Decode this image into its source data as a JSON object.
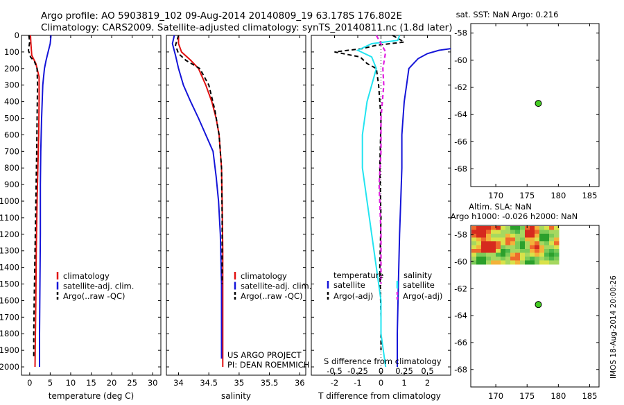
{
  "header": {
    "line1": "Argo profile: AO 5903819_102 09-Aug-2014 20140809_19 63.178S 176.802E",
    "line2": "Climatology: CARS2009. Satellite-adjusted climatology: synTS_20140811.nc (1.8d later)"
  },
  "side_stamp": "IMOS 18-Aug-2014 20:00:26",
  "colors": {
    "climatology": "#e01010",
    "satellite": "#1414d8",
    "argo": "#000000",
    "sal_sat": "#22e4f0",
    "sal_argo": "#e020e0",
    "float_marker": "#44cc22"
  },
  "chart_data": [
    {
      "type": "line",
      "panel": "temperature",
      "xlabel": "temperature (deg C)",
      "xlim": [
        -2,
        32
      ],
      "xticks": [
        0,
        5,
        10,
        15,
        20,
        25,
        30
      ],
      "ylim": [
        0,
        2050
      ],
      "yreversed": true,
      "yticks": [
        0,
        100,
        200,
        300,
        400,
        500,
        600,
        700,
        800,
        900,
        1000,
        1100,
        1200,
        1300,
        1400,
        1500,
        1600,
        1700,
        1800,
        1900,
        2000
      ],
      "legend": [
        "climatology",
        "satellite-adj. clim.",
        "Argo(..raw -QC)"
      ],
      "series": [
        {
          "name": "climatology",
          "x": [
            0.2,
            0.3,
            0.5,
            1.5,
            2.3,
            2.3,
            2.2,
            2.0,
            1.8,
            1.6,
            1.5,
            1.4,
            1.3
          ],
          "y": [
            0,
            50,
            120,
            170,
            250,
            400,
            600,
            800,
            1000,
            1300,
            1600,
            1800,
            2000
          ]
        },
        {
          "name": "satellite-adj. clim.",
          "x": [
            5.2,
            5.0,
            4.5,
            4.0,
            3.6,
            3.2,
            2.9,
            2.7,
            2.6,
            2.6,
            2.5,
            2.4,
            2.4
          ],
          "y": [
            0,
            50,
            100,
            150,
            200,
            300,
            500,
            700,
            900,
            1200,
            1500,
            1800,
            2000
          ]
        },
        {
          "name": "Argo(..raw -QC)",
          "x": [
            -0.2,
            0.0,
            -0.3,
            0.2,
            1.2,
            1.8,
            1.9,
            1.8,
            1.7,
            1.5,
            1.3,
            1.1,
            1.0,
            1.0
          ],
          "y": [
            0,
            40,
            90,
            130,
            160,
            200,
            300,
            500,
            700,
            1000,
            1300,
            1600,
            1800,
            1950
          ]
        }
      ]
    },
    {
      "type": "line",
      "panel": "salinity",
      "xlabel": "salinity",
      "xlim": [
        33.8,
        36.1
      ],
      "xticks": [
        34,
        34.5,
        35,
        35.5,
        36
      ],
      "xticklabels": [
        "34",
        "34.5",
        "35",
        "35.5",
        "36"
      ],
      "ylim": [
        0,
        2050
      ],
      "yreversed": true,
      "legend": [
        "climatology",
        "satellite-adj. clim.",
        "Argo(..raw -QC)"
      ],
      "annotation": [
        "US ARGO PROJECT",
        "PI: DEAN ROEMMICH"
      ],
      "series": [
        {
          "name": "climatology",
          "x": [
            34.0,
            34.0,
            34.05,
            34.2,
            34.33,
            34.45,
            34.55,
            34.62,
            34.67,
            34.71,
            34.72,
            34.73,
            34.73,
            34.73
          ],
          "y": [
            0,
            50,
            100,
            150,
            200,
            300,
            400,
            500,
            600,
            800,
            1000,
            1300,
            1600,
            2000
          ]
        },
        {
          "name": "satellite-adj. clim.",
          "x": [
            33.93,
            33.9,
            33.95,
            34.0,
            34.08,
            34.2,
            34.33,
            34.45,
            34.57,
            34.62,
            34.66,
            34.69,
            34.71,
            34.71
          ],
          "y": [
            0,
            50,
            120,
            200,
            300,
            400,
            500,
            600,
            700,
            850,
            1000,
            1200,
            1500,
            1950
          ]
        },
        {
          "name": "Argo(..raw -QC)",
          "x": [
            34.0,
            33.95,
            34.0,
            34.12,
            34.35,
            34.5,
            34.6,
            34.67,
            34.71,
            34.72,
            34.72
          ],
          "y": [
            0,
            60,
            110,
            150,
            200,
            300,
            450,
            600,
            800,
            1100,
            1500
          ]
        }
      ]
    },
    {
      "type": "line",
      "panel": "differences",
      "xlabel_bottom": "T difference from climatology",
      "xlabel_top": "S difference from climatology",
      "xlim": [
        -3,
        3
      ],
      "xticks": [
        -2,
        -1,
        0,
        1,
        2
      ],
      "sxlim": [
        -0.75,
        0.75
      ],
      "sxticks": [
        -0.5,
        -0.25,
        0,
        0.25,
        0.5
      ],
      "sxticklabels": [
        "-0.5",
        "-0.25",
        "0",
        "0.25",
        "0.5"
      ],
      "ylim": [
        0,
        2050
      ],
      "yreversed": true,
      "legend_titles": [
        "temperature",
        "salinity"
      ],
      "legend": [
        "satellite",
        "Argo(-adj)",
        "satellite",
        "Argo(-adj)"
      ],
      "series": [
        {
          "name": "satellite",
          "x": [
            3.0,
            2.5,
            2.0,
            1.6,
            1.4,
            1.2,
            1.1,
            1.0,
            0.9,
            0.9,
            0.85,
            0.8,
            0.75,
            0.7,
            0.7
          ],
          "y": [
            80,
            90,
            110,
            140,
            170,
            200,
            300,
            400,
            600,
            800,
            1000,
            1200,
            1500,
            1800,
            2000
          ]
        },
        {
          "name": "Argo(-adj)",
          "x": [
            0.5,
            1.0,
            -0.2,
            -0.8,
            -2.0,
            -0.9,
            -0.6,
            -0.2,
            -0.1,
            0.0,
            -0.05,
            0.0,
            -0.05,
            0.0,
            0.0
          ],
          "y": [
            0,
            40,
            60,
            80,
            100,
            130,
            170,
            200,
            300,
            500,
            800,
            1100,
            1400,
            1700,
            1900
          ]
        },
        {
          "name": "salinity satellite",
          "x": [
            0.2,
            0.18,
            -0.1,
            -0.25,
            -0.1,
            -0.05,
            -0.15,
            -0.2,
            -0.2,
            -0.15,
            -0.1,
            -0.05,
            0.0,
            0.0,
            0.05
          ],
          "y": [
            0,
            30,
            50,
            90,
            130,
            200,
            400,
            600,
            800,
            1000,
            1200,
            1400,
            1600,
            1800,
            2000
          ]
        },
        {
          "name": "salinity Argo(-adj)",
          "x": [
            -0.05,
            0.0,
            0.05,
            0.02,
            0.03,
            0.0,
            0.0,
            -0.02,
            0.0,
            0.0
          ],
          "y": [
            0,
            50,
            100,
            200,
            300,
            500,
            700,
            900,
            1200,
            1500
          ]
        }
      ]
    },
    {
      "type": "scatter",
      "panel": "sst-map",
      "title": "sat. SST: NaN Argo: 0.216",
      "xlim": [
        166,
        186.5
      ],
      "xticks": [
        170,
        175,
        180,
        185
      ],
      "ylim": [
        -69.3,
        -57.3
      ],
      "yticks": [
        -58,
        -60,
        -62,
        -64,
        -66,
        -68
      ],
      "points": [
        {
          "x": 176.8,
          "y": -63.18
        }
      ]
    },
    {
      "type": "heatmap",
      "panel": "sla-map",
      "title": "Altim. SLA: NaN",
      "subtitle": "Argo h1000: -0.026 h2000: NaN",
      "xlim": [
        166,
        186.5
      ],
      "xticks": [
        170,
        175,
        180,
        185
      ],
      "ylim": [
        -69.3,
        -57.3
      ],
      "yticks": [
        -58,
        -60,
        -62,
        -64,
        -66,
        -68
      ],
      "points": [
        {
          "x": 176.8,
          "y": -63.18
        }
      ]
    }
  ]
}
